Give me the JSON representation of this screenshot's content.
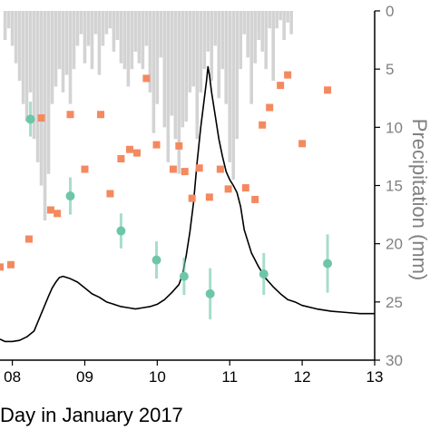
{
  "chart_data": {
    "type": "combo",
    "xlabel": "Day in January 2017",
    "x_ticks": [
      "08",
      "09",
      "10",
      "11",
      "12",
      "13"
    ],
    "xlim": [
      7.83,
      13.0
    ],
    "right_axis": {
      "ylabel": "Precipitation (mm)",
      "ticks": [
        "0",
        "5",
        "10",
        "15",
        "20",
        "25",
        "30"
      ],
      "ylim": [
        0,
        30
      ],
      "inverted": true
    },
    "series": [
      {
        "kind": "bar",
        "axis": "right",
        "color": "#d3d3d3",
        "x": [
          7.9,
          7.95,
          8.0,
          8.05,
          8.1,
          8.15,
          8.2,
          8.25,
          8.3,
          8.35,
          8.4,
          8.45,
          8.5,
          8.55,
          8.6,
          8.65,
          8.7,
          8.75,
          8.8,
          8.85,
          8.9,
          8.95,
          9.0,
          9.05,
          9.1,
          9.15,
          9.2,
          9.25,
          9.3,
          9.35,
          9.4,
          9.45,
          9.5,
          9.55,
          9.6,
          9.65,
          9.7,
          9.75,
          9.8,
          9.85,
          9.9,
          9.95,
          10.0,
          10.05,
          10.1,
          10.15,
          10.2,
          10.25,
          10.3,
          10.35,
          10.4,
          10.45,
          10.5,
          10.55,
          10.6,
          10.65,
          10.7,
          10.75,
          10.8,
          10.85,
          10.9,
          10.95,
          11.0,
          11.05,
          11.1,
          11.15,
          11.2,
          11.25,
          11.3,
          11.35,
          11.4,
          11.45,
          11.5,
          11.55,
          11.6,
          11.65,
          11.7,
          11.75,
          11.8,
          11.85
        ],
        "values": [
          2.5,
          1.5,
          3.0,
          4.5,
          6.0,
          8.0,
          9.5,
          7.0,
          11.0,
          13.0,
          15.0,
          18.0,
          14.0,
          8.0,
          6.5,
          5.0,
          7.0,
          5.5,
          8.0,
          5.0,
          3.0,
          2.0,
          4.5,
          3.0,
          5.0,
          2.0,
          5.5,
          3.0,
          2.0,
          1.5,
          3.5,
          2.5,
          4.5,
          5.0,
          6.5,
          5.0,
          3.5,
          4.5,
          5.0,
          3.0,
          7.0,
          10.5,
          8.0,
          4.0,
          10.0,
          13.0,
          9.0,
          11.0,
          14.0,
          10.0,
          9.5,
          7.0,
          6.5,
          11.0,
          7.0,
          5.0,
          3.5,
          6.0,
          3.0,
          7.5,
          5.0,
          8.0,
          13.0,
          14.5,
          11.0,
          5.0,
          2.0,
          4.0,
          8.0,
          4.5,
          2.5,
          3.5,
          5.0,
          1.5,
          6.0,
          1.5,
          0.8,
          2.5,
          1.0,
          2.0
        ]
      },
      {
        "kind": "line",
        "axis": "right",
        "color": "#000000",
        "x": [
          7.83,
          7.9,
          8.0,
          8.1,
          8.2,
          8.3,
          8.4,
          8.5,
          8.55,
          8.6,
          8.65,
          8.7,
          8.75,
          8.8,
          8.9,
          9.0,
          9.1,
          9.2,
          9.3,
          9.4,
          9.5,
          9.6,
          9.7,
          9.8,
          9.9,
          10.0,
          10.1,
          10.2,
          10.3,
          10.35,
          10.4,
          10.45,
          10.5,
          10.55,
          10.6,
          10.65,
          10.68,
          10.7,
          10.72,
          10.75,
          10.8,
          10.85,
          10.9,
          10.95,
          11.0,
          11.05,
          11.1,
          11.15,
          11.2,
          11.3,
          11.4,
          11.5,
          11.6,
          11.7,
          11.8,
          11.9,
          12.0,
          12.2,
          12.4,
          12.6,
          12.8,
          13.0
        ],
        "values": [
          28.2,
          28.4,
          28.4,
          28.3,
          28.0,
          27.5,
          26.0,
          24.5,
          23.8,
          23.3,
          22.9,
          22.8,
          22.9,
          23.0,
          23.3,
          23.8,
          24.3,
          24.6,
          25.0,
          25.2,
          25.4,
          25.5,
          25.6,
          25.5,
          25.4,
          25.2,
          24.8,
          24.2,
          23.5,
          22.6,
          21.0,
          19.0,
          16.5,
          13.0,
          10.0,
          7.5,
          6.0,
          4.8,
          5.5,
          7.0,
          9.0,
          11.0,
          12.5,
          13.8,
          14.5,
          15.0,
          15.6,
          16.8,
          18.8,
          20.8,
          22.0,
          23.0,
          23.7,
          24.3,
          24.8,
          25.0,
          25.3,
          25.6,
          25.8,
          25.9,
          26.0,
          26.0
        ]
      },
      {
        "kind": "scatter",
        "axis": "right",
        "color": "#f4895f",
        "marker": "square",
        "x": [
          7.83,
          7.98,
          8.23,
          8.4,
          8.53,
          8.62,
          8.8,
          9.0,
          9.22,
          9.35,
          9.5,
          9.62,
          9.72,
          9.85,
          9.99,
          10.22,
          10.3,
          10.38,
          10.48,
          10.58,
          10.72,
          10.87,
          10.98,
          11.22,
          11.35,
          11.45,
          11.55,
          11.7,
          11.8,
          12.0,
          12.35
        ],
        "y": [
          22.0,
          21.8,
          19.6,
          9.2,
          17.1,
          17.4,
          8.9,
          13.6,
          8.9,
          15.7,
          12.7,
          11.9,
          12.2,
          5.8,
          11.5,
          13.6,
          11.6,
          13.8,
          16.1,
          13.5,
          16.0,
          13.6,
          15.3,
          15.2,
          16.2,
          9.8,
          8.3,
          6.4,
          5.5,
          11.4,
          6.8
        ]
      },
      {
        "kind": "scatter",
        "axis": "right",
        "color": "#6dc6a8",
        "marker": "circle",
        "errorbars": true,
        "x": [
          8.25,
          8.8,
          9.5,
          9.99,
          10.37,
          10.73,
          11.47,
          12.35
        ],
        "y": [
          9.3,
          15.9,
          18.9,
          21.4,
          22.8,
          24.3,
          22.6,
          21.7
        ],
        "err": [
          1.5,
          1.6,
          1.5,
          1.6,
          1.6,
          2.2,
          1.8,
          2.5
        ]
      }
    ]
  }
}
